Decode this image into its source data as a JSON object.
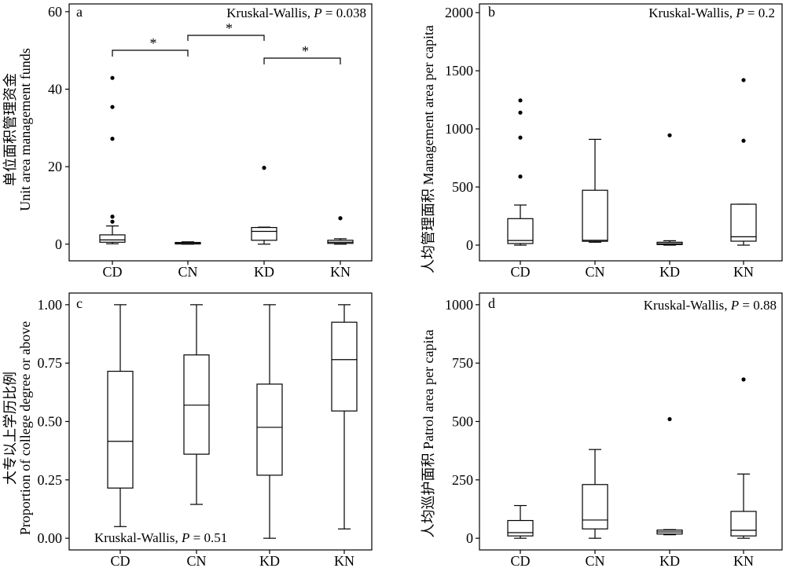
{
  "chart_data": [
    {
      "panel": "a",
      "type": "box",
      "ylabel": [
        "单位面积管理资金",
        "Unit area management funds"
      ],
      "categories": [
        "CD",
        "CN",
        "KD",
        "KN"
      ],
      "ylim": [
        -4.3,
        62
      ],
      "yticks": [
        0,
        20,
        40,
        60
      ],
      "ytick_labels": [
        "0",
        "20",
        "40",
        "60"
      ],
      "annotation": {
        "label": "Kruskal-Wallis,",
        "symbol": "P",
        "value": "= 0.038"
      },
      "boxes": [
        {
          "whisker_low": 0.1,
          "q1": 0.5,
          "median": 1.1,
          "q3": 2.4,
          "whisker_high": 4.7,
          "outliers": [
            5.8,
            7.1,
            27.2,
            35.4,
            42.9
          ]
        },
        {
          "whisker_low": 0,
          "q1": 0.05,
          "median": 0.2,
          "q3": 0.45,
          "whisker_high": 0.6,
          "outliers": []
        },
        {
          "whisker_low": 0,
          "q1": 1.0,
          "median": 3.3,
          "q3": 4.3,
          "whisker_high": 4.4,
          "outliers": [
            19.7
          ]
        },
        {
          "whisker_low": 0,
          "q1": 0.2,
          "median": 0.5,
          "q3": 1.0,
          "whisker_high": 1.4,
          "outliers": [
            6.7
          ]
        }
      ],
      "significance": [
        {
          "pair": [
            0,
            1
          ],
          "label": "*"
        },
        {
          "pair": [
            1,
            2
          ],
          "label": "*"
        },
        {
          "pair": [
            2,
            3
          ],
          "label": "*"
        }
      ]
    },
    {
      "panel": "b",
      "type": "box",
      "ylabel": [
        "人均管理面积 Management area per capita"
      ],
      "categories": [
        "CD",
        "CN",
        "KD",
        "KN"
      ],
      "ylim": [
        -135,
        2075
      ],
      "yticks": [
        0,
        500,
        1000,
        1500,
        2000
      ],
      "ytick_labels": [
        "0",
        "500",
        "1000",
        "1500",
        "2000"
      ],
      "annotation": {
        "label": "Kruskal-Wallis,",
        "symbol": "P",
        "value": "= 0.2"
      },
      "boxes": [
        {
          "whisker_low": 0,
          "q1": 14,
          "median": 40,
          "q3": 228,
          "whisker_high": 345,
          "outliers": [
            590,
            925,
            1140,
            1245
          ]
        },
        {
          "whisker_low": 25,
          "q1": 33,
          "median": 42,
          "q3": 472,
          "whisker_high": 910,
          "outliers": []
        },
        {
          "whisker_low": 0,
          "q1": 5,
          "median": 12,
          "q3": 25,
          "whisker_high": 38,
          "outliers": [
            945
          ]
        },
        {
          "whisker_low": 0,
          "q1": 34,
          "median": 72,
          "q3": 352,
          "whisker_high": 352,
          "outliers": [
            898,
            1420
          ]
        }
      ]
    },
    {
      "panel": "c",
      "type": "box",
      "ylabel": [
        "大专以上学历比例",
        "Proportion of college degree or above"
      ],
      "categories": [
        "CD",
        "CN",
        "KD",
        "KN"
      ],
      "ylim": [
        -0.05,
        1.05
      ],
      "yticks": [
        0,
        0.25,
        0.5,
        0.75,
        1
      ],
      "ytick_labels": [
        "0.00",
        "0.25",
        "0.50",
        "0.75",
        "1.00"
      ],
      "annotation": {
        "label": "Kruskal-Wallis,",
        "symbol": "P",
        "value": "= 0.51"
      },
      "boxes": [
        {
          "whisker_low": 0.05,
          "q1": 0.215,
          "median": 0.415,
          "q3": 0.715,
          "whisker_high": 1.0,
          "outliers": []
        },
        {
          "whisker_low": 0.145,
          "q1": 0.36,
          "median": 0.57,
          "q3": 0.785,
          "whisker_high": 1.0,
          "outliers": []
        },
        {
          "whisker_low": 0,
          "q1": 0.27,
          "median": 0.475,
          "q3": 0.66,
          "whisker_high": 1.0,
          "outliers": []
        },
        {
          "whisker_low": 0.04,
          "q1": 0.545,
          "median": 0.765,
          "q3": 0.925,
          "whisker_high": 1.0,
          "outliers": []
        }
      ]
    },
    {
      "panel": "d",
      "type": "box",
      "ylabel": [
        "人均巡护面积 Patrol area per capita"
      ],
      "categories": [
        "CD",
        "CN",
        "KD",
        "KN"
      ],
      "ylim": [
        -50,
        1050
      ],
      "yticks": [
        0,
        250,
        500,
        750,
        1000
      ],
      "ytick_labels": [
        "0",
        "250",
        "500",
        "750",
        "1000"
      ],
      "annotation": {
        "label": "Kruskal-Wallis,",
        "symbol": "P",
        "value": "= 0.88"
      },
      "boxes": [
        {
          "whisker_low": 0,
          "q1": 10,
          "median": 24,
          "q3": 76,
          "whisker_high": 140,
          "outliers": []
        },
        {
          "whisker_low": 0,
          "q1": 40,
          "median": 78,
          "q3": 230,
          "whisker_high": 380,
          "outliers": []
        },
        {
          "whisker_low": 15,
          "q1": 18,
          "median": 27,
          "q3": 35,
          "whisker_high": 37,
          "outliers": [
            510
          ]
        },
        {
          "whisker_low": 0,
          "q1": 10,
          "median": 34,
          "q3": 115,
          "whisker_high": 275,
          "outliers": [
            680
          ]
        }
      ]
    }
  ]
}
